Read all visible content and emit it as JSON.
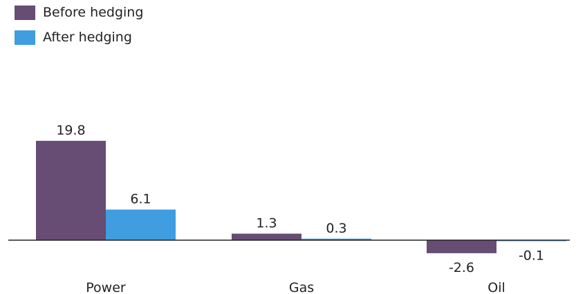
{
  "chart_data": {
    "type": "bar",
    "categories": [
      "Power",
      "Gas",
      "Oil"
    ],
    "series": [
      {
        "name": "Before hedging",
        "color": "#674c74",
        "values": [
          19.8,
          1.3,
          -2.6
        ]
      },
      {
        "name": "After hedging",
        "color": "#3f9de0",
        "values": [
          6.1,
          0.3,
          -0.1
        ]
      }
    ],
    "data_labels": [
      [
        "19.8",
        "6.1"
      ],
      [
        "1.3",
        "0.3"
      ],
      [
        "-2.6",
        "-0.1"
      ]
    ],
    "title": "",
    "xlabel": "",
    "ylabel": "",
    "ylim": [
      -3,
      20
    ],
    "grid": false,
    "legend": "top-left",
    "axis_color": "#222222"
  }
}
